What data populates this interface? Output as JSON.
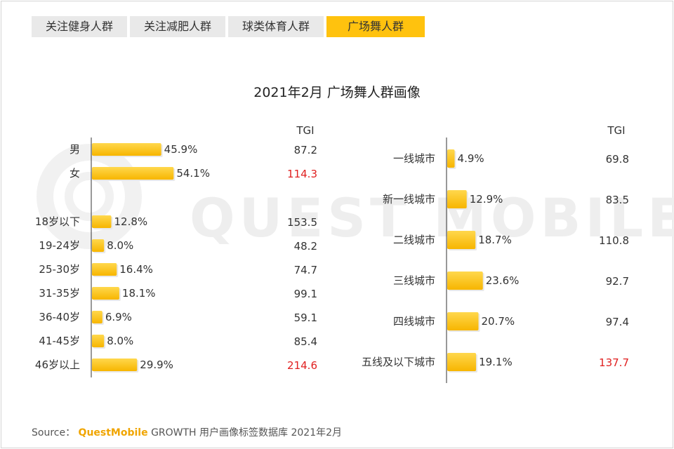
{
  "tabs": [
    {
      "label": "关注健身人群",
      "active": false
    },
    {
      "label": "关注减肥人群",
      "active": false
    },
    {
      "label": "球类体育人群",
      "active": false
    },
    {
      "label": "广场舞人群",
      "active": true
    }
  ],
  "watermark": "QUEST MOBILE",
  "tgi_header": "TGI",
  "source": {
    "prefix": "Source：",
    "brand": "QuestMobile",
    "rest": "GROWTH 用户画像标签数据库 2021年2月"
  },
  "colors": {
    "bar_top": "#ffd84d",
    "bar_bottom": "#f7b500",
    "highlight": "#e02020",
    "tab_active": "#ffc20e"
  },
  "chart_data": [
    {
      "type": "bar",
      "orientation": "horizontal",
      "title": "2021年2月 广场舞人群画像",
      "categories": [
        "男",
        "女",
        "18岁以下",
        "19-24岁",
        "25-30岁",
        "31-35岁",
        "36-40岁",
        "41-45岁",
        "46岁以上"
      ],
      "values": [
        45.9,
        54.1,
        12.8,
        8.0,
        16.4,
        18.1,
        6.9,
        8.0,
        29.9
      ],
      "labels": [
        "45.9%",
        "54.1%",
        "12.8%",
        "8.0%",
        "16.4%",
        "18.1%",
        "6.9%",
        "8.0%",
        "29.9%"
      ],
      "tgi": [
        "87.2",
        "114.3",
        "153.5",
        "48.2",
        "74.7",
        "99.1",
        "59.1",
        "85.4",
        "214.6"
      ],
      "tgi_highlight": [
        false,
        true,
        false,
        false,
        false,
        false,
        false,
        false,
        true
      ],
      "unit": "%"
    },
    {
      "type": "bar",
      "orientation": "horizontal",
      "categories": [
        "一线城市",
        "新一线城市",
        "二线城市",
        "三线城市",
        "四线城市",
        "五线及以下城市"
      ],
      "values": [
        4.9,
        12.9,
        18.7,
        23.6,
        20.7,
        19.1
      ],
      "labels": [
        "4.9%",
        "12.9%",
        "18.7%",
        "23.6%",
        "20.7%",
        "19.1%"
      ],
      "tgi": [
        "69.8",
        "83.5",
        "110.8",
        "92.7",
        "97.4",
        "137.7"
      ],
      "tgi_highlight": [
        false,
        false,
        false,
        false,
        false,
        true
      ],
      "unit": "%"
    }
  ]
}
